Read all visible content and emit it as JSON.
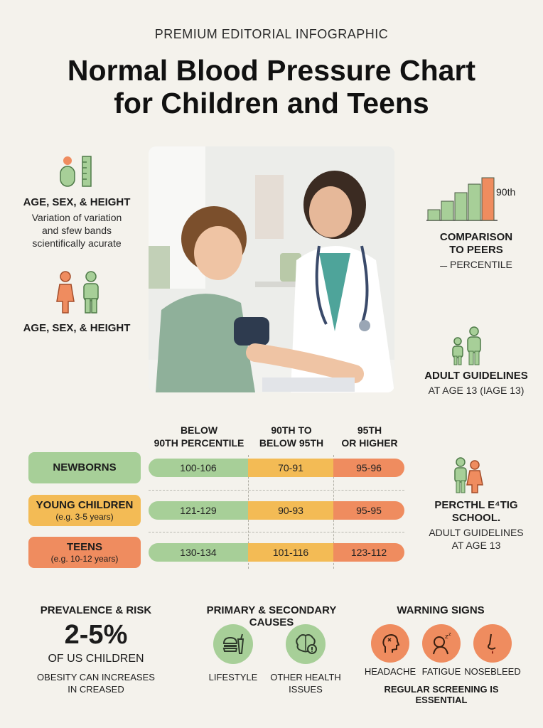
{
  "header": {
    "kicker": "PREMIUM EDITORIAL INFOGRAPHIC",
    "title_line1": "Normal Blood Pressure Chart",
    "title_line2": "for Children and Teens"
  },
  "left_panel": {
    "block1": {
      "heading": "AGE, SEX, & HEIGHT",
      "line1": "Variation of variation",
      "line2": "and sfew bands",
      "line3": "scientifically acurate"
    },
    "block2": {
      "heading": "AGE, SEX, & HEIGHT"
    }
  },
  "right_panel": {
    "percentile_chart": {
      "label": "90th",
      "bar_levels": [
        0.25,
        0.45,
        0.65,
        0.85,
        1.0
      ]
    },
    "comparison": {
      "line1": "COMPARISON",
      "line2": "TO PEERS",
      "line3": "PERCENTILE"
    },
    "adult_guidelines": {
      "heading": "ADULT GUIDELINES",
      "sub": "AT AGE 13 (IAGE 13)"
    },
    "school": {
      "line1": "PERCTHL E⁴TIG",
      "line2": "SCHOOL.",
      "line3": "ADULT GUIDELINES",
      "line4": "AT AGE 13"
    }
  },
  "table": {
    "columns": [
      {
        "line1": "BELOW",
        "line2": "90TH PERCENTILE"
      },
      {
        "line1": "90TH TO",
        "line2": "BELOW 95TH"
      },
      {
        "line1": "95TH",
        "line2": "OR HIGHER"
      }
    ],
    "rows": [
      {
        "label": "NEWBORNS",
        "sub": "",
        "color": "#a7cf98",
        "values": [
          "100-106",
          "70-91",
          "95-96"
        ]
      },
      {
        "label": "YOUNG CHILDREN",
        "sub": "(e.g. 3-5 years)",
        "color": "#f3bb55",
        "values": [
          "121-129",
          "90-93",
          "95-95"
        ]
      },
      {
        "label": "TEENS",
        "sub": "(e.g. 10-12 years)",
        "color": "#ef8c5f",
        "values": [
          "130-134",
          "101-116",
          "123-112"
        ]
      }
    ],
    "colors": {
      "below": "#a7cf98",
      "between": "#f3bb55",
      "higher": "#ef8c5f"
    }
  },
  "bottom": {
    "prevalence": {
      "heading": "PREVALENCE & RISK",
      "stat": "2-5%",
      "stat_sub": "OF US CHILDREN",
      "note1": "OBESITY CAN INCREASES",
      "note2": "IN CREASED"
    },
    "causes": {
      "heading": "PRIMARY & SECONDARY CAUSES",
      "items": [
        {
          "label1": "LIFESTYLE",
          "label2": "",
          "icon": "fast-food-icon"
        },
        {
          "label1": "OTHER HEALTH",
          "label2": "ISSUES",
          "icon": "brain-alert-icon"
        }
      ]
    },
    "warning": {
      "heading": "WARNING SIGNS",
      "items": [
        {
          "label": "HEADACHE",
          "icon": "headache-icon"
        },
        {
          "label": "FATIGUE",
          "icon": "fatigue-icon"
        },
        {
          "label": "NOSEBLEED",
          "icon": "nosebleed-icon"
        }
      ],
      "footer": "REGULAR SCREENING IS ESSENTIAL"
    }
  }
}
